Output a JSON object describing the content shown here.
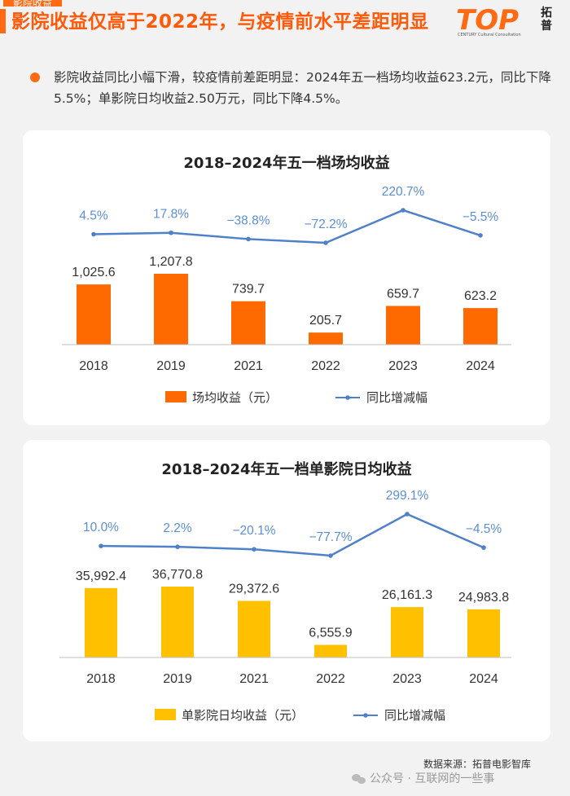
{
  "header": {
    "tab_label": "影院收益",
    "title": "影院收益仅高于2022年，与疫情前水平差距明显",
    "logo_text": "TOP",
    "logo_sub": "CENTURY Cultural Consultation",
    "logo_cn": "拓普"
  },
  "summary": "影院收益同比小幅下滑，较疫情前差距明显：2024年五一档场均收益623.2元，同比下降5.5%；单影院日均收益2.50万元，同比下降4.5%。",
  "colors": {
    "accent": "#ff6a13",
    "bar1": "#ff6a00",
    "bar2": "#ffc000",
    "line": "#4f81c9"
  },
  "chart_data": [
    {
      "type": "bar",
      "title": "2018–2024年五一档场均收益",
      "categories": [
        "2018",
        "2019",
        "2021",
        "2022",
        "2023",
        "2024"
      ],
      "series": [
        {
          "name": "场均收益（元）",
          "type": "bar",
          "values": [
            1025.6,
            1207.8,
            739.7,
            205.7,
            659.7,
            623.2
          ],
          "labels": [
            "1,025.6",
            "1,207.8",
            "739.7",
            "205.7",
            "659.7",
            "623.2"
          ]
        },
        {
          "name": "同比增减幅",
          "type": "line",
          "values": [
            4.5,
            17.8,
            -38.8,
            -72.2,
            220.7,
            -5.5
          ],
          "labels": [
            "4.5%",
            "17.8%",
            "−38.8%",
            "−72.2%",
            "220.7%",
            "−5.5%"
          ]
        }
      ]
    },
    {
      "type": "bar",
      "title": "2018–2024年五一档单影院日均收益",
      "categories": [
        "2018",
        "2019",
        "2021",
        "2022",
        "2023",
        "2024"
      ],
      "series": [
        {
          "name": "单影院日均收益（元）",
          "type": "bar",
          "values": [
            35992.4,
            36770.8,
            29372.6,
            6555.9,
            26161.3,
            24983.8
          ],
          "labels": [
            "35,992.4",
            "36,770.8",
            "29,372.6",
            "6,555.9",
            "26,161.3",
            "24,983.8"
          ]
        },
        {
          "name": "同比增减幅",
          "type": "line",
          "values": [
            10.0,
            2.2,
            -20.1,
            -77.7,
            299.1,
            -4.5
          ],
          "labels": [
            "10.0%",
            "2.2%",
            "−20.1%",
            "−77.7%",
            "299.1%",
            "−4.5%"
          ]
        }
      ]
    }
  ],
  "footer": {
    "source": "数据来源：拓普电影智库",
    "wechat": "公众号 · 互联网的一些事"
  }
}
